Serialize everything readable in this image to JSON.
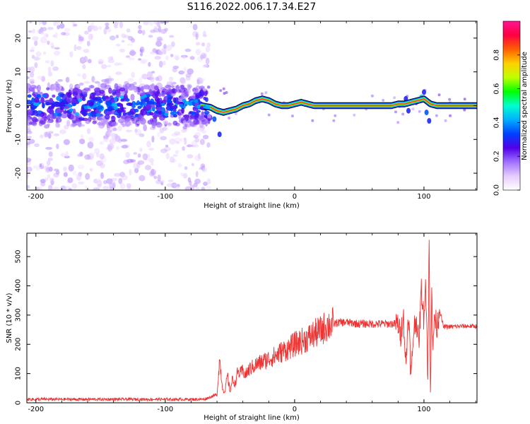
{
  "title": "S116.2022.006.17.34.E27",
  "chart_data": [
    {
      "type": "heatmap",
      "xlabel": "Height of straight line (km)",
      "ylabel": "Frequency (Hz)",
      "xlim": [
        -207,
        141
      ],
      "ylim": [
        -25,
        25
      ],
      "xticks": [
        -200,
        -100,
        0,
        100
      ],
      "yticks": [
        -20,
        -10,
        0,
        10,
        20
      ],
      "grid": false,
      "colorbar": {
        "label": "Normalized spectral amplitude",
        "range": [
          0,
          1
        ],
        "ticks": [
          "0.0",
          "0.2",
          "0.4",
          "0.6",
          "0.8"
        ],
        "colormap": [
          "#ffffff",
          "#e6ccff",
          "#a070ff",
          "#5000e8",
          "#0040ff",
          "#00b0ff",
          "#00ffd0",
          "#00ff00",
          "#c0ff00",
          "#ffd000",
          "#ff6000",
          "#ff0040",
          "#ff1493"
        ]
      },
      "ridge": {
        "description_of_data": "dominant frequency (Hz) vs height (km)",
        "x": [
          -207,
          -180,
          -150,
          -120,
          -90,
          -72,
          -65,
          -60,
          -55,
          -50,
          -45,
          -40,
          -35,
          -30,
          -25,
          -20,
          -15,
          -10,
          -5,
          0,
          5,
          10,
          15,
          20,
          30,
          50,
          70,
          75,
          80,
          85,
          90,
          95,
          100,
          105,
          110,
          120,
          141
        ],
        "y": [
          0.8,
          1.5,
          0.5,
          1.0,
          0.3,
          0.0,
          -0.5,
          -1.5,
          -2.0,
          -1.5,
          -1.0,
          0.0,
          0.5,
          1.5,
          2.0,
          1.5,
          0.5,
          0.0,
          0.0,
          0.5,
          1.0,
          0.5,
          0.0,
          0.0,
          0.0,
          0.0,
          0.0,
          0.0,
          0.5,
          0.5,
          1.0,
          1.5,
          2.0,
          0.5,
          0.0,
          0.0,
          0.0
        ]
      }
    },
    {
      "type": "line",
      "xlabel": "Height of straight line (km)",
      "ylabel": "SNR (10 * v/v)",
      "xlim": [
        -207,
        141
      ],
      "ylim": [
        0,
        580
      ],
      "xticks": [
        -200,
        -100,
        0,
        100
      ],
      "yticks": [
        0,
        100,
        200,
        300,
        400,
        500
      ],
      "grid": false,
      "series": [
        {
          "color": "#ee3333",
          "x": [
            -207,
            -180,
            -150,
            -120,
            -90,
            -70,
            -60,
            -58,
            -56,
            -54,
            -52,
            -50,
            -48,
            -46,
            -44,
            -42,
            -40,
            -38,
            -35,
            -30,
            -25,
            -20,
            -15,
            -10,
            -5,
            0,
            5,
            10,
            15,
            20,
            25,
            30,
            35,
            40,
            50,
            60,
            70,
            75,
            80,
            82,
            84,
            86,
            88,
            90,
            92,
            94,
            96,
            98,
            100,
            101,
            102,
            103,
            104,
            105,
            106,
            107,
            108,
            110,
            112,
            115,
            120,
            130,
            141
          ],
          "y": [
            12,
            12,
            12,
            12,
            12,
            12,
            28,
            150,
            60,
            30,
            95,
            40,
            80,
            65,
            105,
            100,
            110,
            95,
            115,
            130,
            140,
            150,
            160,
            175,
            185,
            200,
            210,
            220,
            235,
            245,
            265,
            270,
            275,
            275,
            270,
            270,
            270,
            270,
            270,
            230,
            310,
            120,
            320,
            80,
            250,
            290,
            200,
            390,
            280,
            440,
            300,
            80,
            560,
            20,
            420,
            160,
            300,
            260,
            320,
            260,
            260,
            262,
            262
          ]
        }
      ]
    }
  ]
}
